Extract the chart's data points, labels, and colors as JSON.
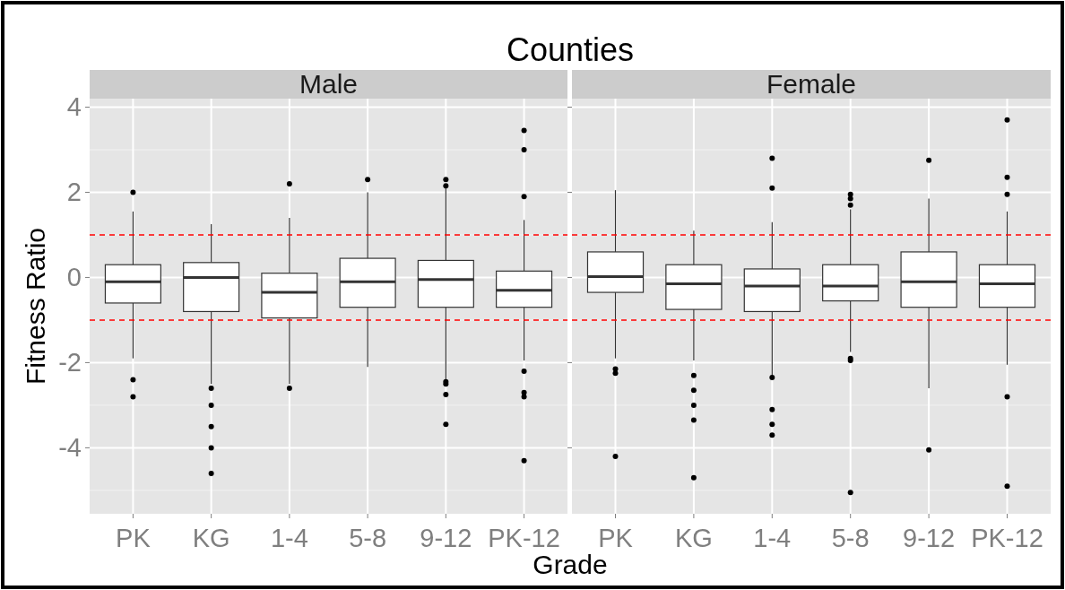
{
  "chart_data": [
    {
      "type": "box",
      "title": "Counties",
      "subtitle": "Male",
      "xlabel": "Grade",
      "ylabel": "Fitness Ratio",
      "categories": [
        "PK",
        "KG",
        "1-4",
        "5-8",
        "9-12",
        "PK-12"
      ],
      "boxes": [
        {
          "low": -1.9,
          "q1": -0.6,
          "median": -0.1,
          "q3": 0.3,
          "high": 1.55,
          "outliers": [
            2.0,
            -2.4,
            -2.8
          ]
        },
        {
          "low": -2.5,
          "q1": -0.8,
          "median": 0,
          "q3": 0.35,
          "high": 1.25,
          "outliers": [
            -2.6,
            -3.0,
            -3.5,
            -4.0,
            -4.6
          ]
        },
        {
          "low": -2.5,
          "q1": -0.95,
          "median": -0.35,
          "q3": 0.1,
          "high": 1.4,
          "outliers": [
            2.2,
            -2.6
          ]
        },
        {
          "low": -2.1,
          "q1": -0.7,
          "median": -0.1,
          "q3": 0.45,
          "high": 2.0,
          "outliers": [
            2.3
          ]
        },
        {
          "low": -2.4,
          "q1": -0.7,
          "median": -0.05,
          "q3": 0.4,
          "high": 2.1,
          "outliers": [
            2.3,
            2.15,
            -2.45,
            -2.5,
            -2.75,
            -3.45
          ]
        },
        {
          "low": -1.95,
          "q1": -0.7,
          "median": -0.3,
          "q3": 0.15,
          "high": 1.35,
          "outliers": [
            3.45,
            3.0,
            1.9,
            -2.2,
            -2.7,
            -2.8,
            -4.3
          ]
        }
      ],
      "ylim": [
        -5.55,
        4.2
      ],
      "yticks": [
        -4,
        -2,
        0,
        2,
        4
      ],
      "grid": true,
      "ref_lines": [
        {
          "axis": "y",
          "value": 1,
          "color": "#ff0000",
          "line_style": "dashed"
        },
        {
          "axis": "y",
          "value": -1,
          "color": "#ff0000",
          "line_style": "dashed"
        }
      ]
    },
    {
      "type": "box",
      "subtitle": "Female",
      "categories": [
        "PK",
        "KG",
        "1-4",
        "5-8",
        "9-12",
        "PK-12"
      ],
      "boxes": [
        {
          "low": -1.9,
          "q1": -0.35,
          "median": 0.02,
          "q3": 0.6,
          "high": 2.05,
          "outliers": [
            -2.15,
            -2.25,
            -4.2
          ]
        },
        {
          "low": -1.95,
          "q1": -0.75,
          "median": -0.15,
          "q3": 0.3,
          "high": 1.1,
          "outliers": [
            -2.3,
            -2.65,
            -3.0,
            -3.35,
            -4.7
          ]
        },
        {
          "low": -2.3,
          "q1": -0.8,
          "median": -0.2,
          "q3": 0.2,
          "high": 1.3,
          "outliers": [
            2.8,
            2.1,
            -2.35,
            -3.1,
            -3.45,
            -3.7
          ]
        },
        {
          "low": -1.75,
          "q1": -0.55,
          "median": -0.2,
          "q3": 0.3,
          "high": 1.6,
          "outliers": [
            1.95,
            1.85,
            1.7,
            -1.9,
            -1.95,
            -5.05
          ]
        },
        {
          "low": -2.6,
          "q1": -0.7,
          "median": -0.1,
          "q3": 0.6,
          "high": 1.85,
          "outliers": [
            2.75,
            -4.05
          ]
        },
        {
          "low": -2.05,
          "q1": -0.7,
          "median": -0.15,
          "q3": 0.3,
          "high": 1.55,
          "outliers": [
            3.7,
            2.35,
            1.95,
            -2.8,
            -4.9
          ]
        }
      ],
      "ylim": [
        -5.55,
        4.2
      ],
      "yticks": [
        -4,
        -2,
        0,
        2,
        4
      ],
      "grid": true,
      "tick_labels": "x",
      "ref_lines": [
        {
          "axis": "y",
          "value": 1,
          "color": "#ff0000",
          "line_style": "dashed"
        },
        {
          "axis": "y",
          "value": -1,
          "color": "#ff0000",
          "line_style": "dashed"
        }
      ]
    }
  ]
}
